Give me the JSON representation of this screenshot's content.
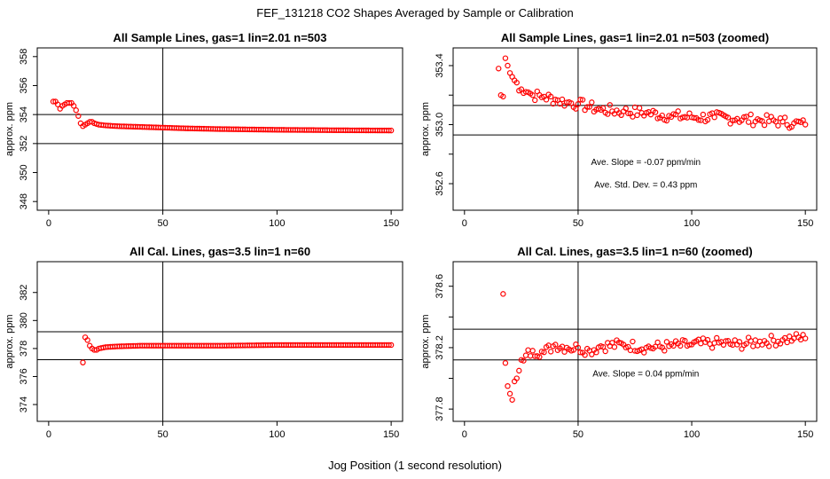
{
  "figure": {
    "title": "FEF_131218  CO2 Shapes Averaged by Sample or Calibration",
    "xlabel": "Jog Position (1 second resolution)"
  },
  "chart_data": [
    {
      "type": "scatter",
      "title": "All Sample Lines, gas=1 lin=2.01 n=503",
      "xlabel": "",
      "ylabel": "approx. ppm",
      "xlim": [
        -5,
        155
      ],
      "ylim": [
        347.4,
        358.6
      ],
      "xticks": [
        0,
        50,
        100,
        150
      ],
      "yticks": [
        348,
        350,
        352,
        354,
        356,
        358
      ],
      "vline": 50,
      "hlines": [
        352,
        354
      ],
      "annotations": [],
      "grid": false,
      "marker_color": "#ff0000",
      "series": [
        {
          "x": [
            2,
            3,
            4,
            5,
            6,
            7,
            8,
            9,
            10,
            11,
            12,
            13,
            14,
            15,
            16,
            17,
            18,
            19,
            20,
            22,
            25,
            30,
            40,
            50,
            60,
            75,
            100,
            125,
            150
          ],
          "y": [
            354.9,
            354.9,
            354.7,
            354.4,
            354.6,
            354.7,
            354.8,
            354.8,
            354.8,
            354.6,
            354.3,
            353.9,
            353.4,
            353.2,
            353.3,
            353.4,
            353.5,
            353.5,
            353.4,
            353.3,
            353.25,
            353.2,
            353.15,
            353.1,
            353.05,
            353.0,
            352.95,
            352.92,
            352.9
          ]
        }
      ]
    },
    {
      "type": "scatter",
      "title": "All Sample Lines, gas=1 lin=2.01 n=503 (zoomed)",
      "xlabel": "",
      "ylabel": "approx. ppm",
      "xlim": [
        -5,
        155
      ],
      "ylim": [
        352.42,
        353.52
      ],
      "xticks": [
        0,
        50,
        100,
        150
      ],
      "yticks": [
        352.6,
        352.8,
        353.0,
        353.2,
        353.4
      ],
      "ytick_labels": [
        "352.6",
        "",
        "353.0",
        "",
        "353.4"
      ],
      "vline": 50,
      "hlines": [
        352.93,
        353.13
      ],
      "annotations": [
        "Ave. Slope =  -0.07  ppm/min",
        "Ave. Std. Dev. =  0.43  ppm"
      ],
      "grid": false,
      "marker_color": "#ff0000",
      "series": [
        {
          "x": [
            15,
            16,
            17,
            18,
            19,
            20,
            22,
            25,
            28,
            30,
            35,
            40,
            45,
            50,
            55,
            60,
            70,
            80,
            90,
            100,
            110,
            120,
            130,
            140,
            145,
            150
          ],
          "y": [
            353.38,
            353.2,
            353.19,
            353.45,
            353.4,
            353.35,
            353.3,
            353.24,
            353.22,
            353.2,
            353.19,
            353.17,
            353.15,
            353.14,
            353.12,
            353.1,
            353.09,
            353.08,
            353.06,
            353.05,
            353.05,
            353.04,
            353.03,
            353.02,
            353.01,
            353.0
          ]
        }
      ]
    },
    {
      "type": "scatter",
      "title": "All Cal. Lines, gas=3.5 lin=1 n=60",
      "xlabel": "",
      "ylabel": "approx. ppm",
      "xlim": [
        -5,
        155
      ],
      "ylim": [
        372.8,
        384.2
      ],
      "xticks": [
        0,
        50,
        100,
        150
      ],
      "yticks": [
        374,
        376,
        378,
        380,
        382
      ],
      "vline": 50,
      "hlines": [
        377.2,
        379.2
      ],
      "annotations": [],
      "grid": false,
      "marker_color": "#ff0000",
      "series": [
        {
          "x": [
            15,
            16,
            17,
            18,
            19,
            20,
            21,
            22,
            25,
            30,
            40,
            50,
            60,
            75,
            100,
            125,
            150
          ],
          "y": [
            377.0,
            378.8,
            378.6,
            378.2,
            378.0,
            377.9,
            377.9,
            378.0,
            378.1,
            378.15,
            378.2,
            378.2,
            378.2,
            378.2,
            378.25,
            378.25,
            378.25
          ]
        }
      ]
    },
    {
      "type": "scatter",
      "title": "All Cal. Lines, gas=3.5 lin=1 n=60 (zoomed)",
      "xlabel": "",
      "ylabel": "approx. ppm",
      "xlim": [
        -5,
        155
      ],
      "ylim": [
        377.72,
        378.76
      ],
      "xticks": [
        0,
        50,
        100,
        150
      ],
      "yticks": [
        377.8,
        378.0,
        378.2,
        378.4,
        378.6
      ],
      "ytick_labels": [
        "377.8",
        "",
        "378.2",
        "",
        "378.6"
      ],
      "vline": 50,
      "hlines": [
        378.12,
        378.32
      ],
      "annotations": [
        "Ave. Slope =  0.04  ppm/min"
      ],
      "grid": false,
      "marker_color": "#ff0000",
      "series": [
        {
          "x": [
            17,
            18,
            19,
            20,
            21,
            22,
            23,
            24,
            25,
            27,
            30,
            35,
            40,
            45,
            50,
            55,
            60,
            70,
            80,
            90,
            100,
            110,
            120,
            130,
            140,
            145,
            150
          ],
          "y": [
            378.55,
            378.1,
            377.95,
            377.9,
            377.86,
            377.98,
            378.0,
            378.05,
            378.12,
            378.15,
            378.18,
            378.17,
            378.22,
            378.2,
            378.2,
            378.18,
            378.21,
            378.22,
            378.2,
            378.21,
            378.22,
            378.23,
            378.22,
            378.24,
            378.25,
            378.26,
            378.26
          ]
        }
      ]
    }
  ]
}
